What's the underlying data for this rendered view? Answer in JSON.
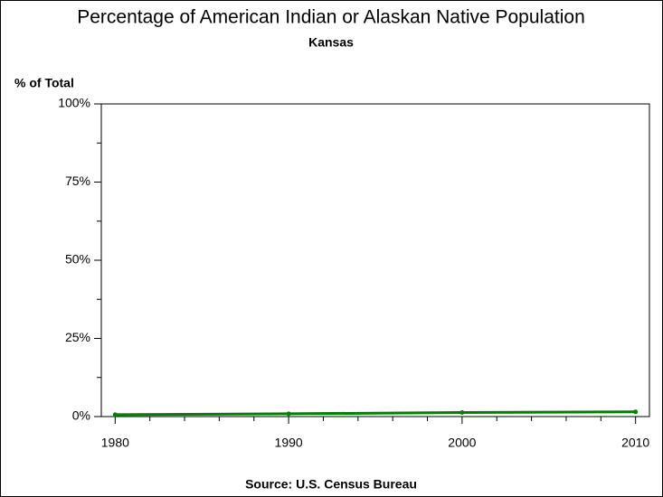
{
  "chart_data": {
    "type": "line",
    "title": "Percentage of American Indian or Alaskan Native Population",
    "subtitle": "Kansas",
    "y_axis_label": "% of Total",
    "source": "Source: U.S. Census Bureau",
    "x": [
      1980,
      1990,
      2000,
      2010
    ],
    "series": [
      {
        "color": "#008000",
        "values": [
          0.6,
          0.9,
          1.3,
          1.5
        ]
      }
    ],
    "xlim": [
      1979.2,
      2010.8
    ],
    "xticks": [
      1980,
      1990,
      2000,
      2010
    ],
    "xminorticks": [
      1982,
      1984,
      1986,
      1988,
      1992,
      1994,
      1996,
      1998,
      2002,
      2004,
      2006,
      2008
    ],
    "ylim": [
      0,
      100
    ],
    "yticks": [
      {
        "value": 0,
        "label": "0%"
      },
      {
        "value": 25,
        "label": "25%"
      },
      {
        "value": 50,
        "label": "50%"
      },
      {
        "value": 75,
        "label": "75%"
      },
      {
        "value": 100,
        "label": "100%"
      }
    ],
    "yminorticks": [
      12.5,
      37.5,
      62.5,
      87.5
    ]
  }
}
